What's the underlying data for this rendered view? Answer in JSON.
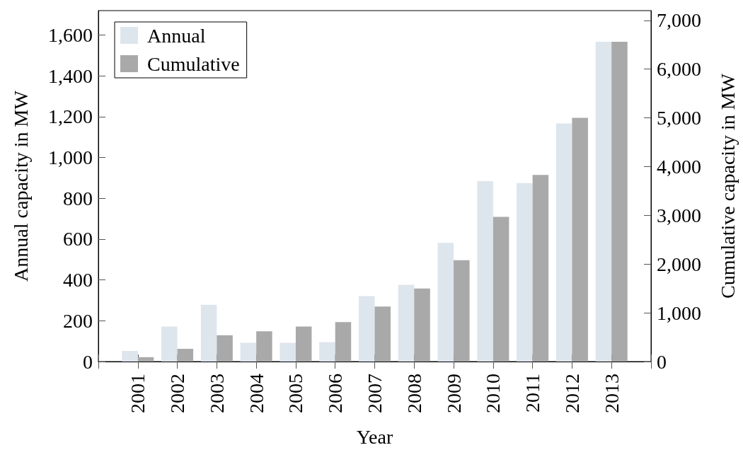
{
  "chart_data": {
    "type": "bar",
    "xlabel": "Year",
    "ylabel": "Annual capacity in MW",
    "y2label": "Cumulative capacity in MW",
    "categories": [
      "2001",
      "2002",
      "2003",
      "2004",
      "2005",
      "2006",
      "2007",
      "2008",
      "2009",
      "2010",
      "2011",
      "2012",
      "2013"
    ],
    "series": [
      {
        "name": "Annual",
        "color": "#dde5ed",
        "values": [
          52,
          172,
          278,
          92,
          92,
          95,
          321,
          376,
          582,
          884,
          875,
          1167,
          1567
        ]
      },
      {
        "name": "Cumulative",
        "color": "#a9a9a9",
        "axis": "y2",
        "values": [
          90,
          260,
          540,
          620,
          720,
          810,
          1130,
          1500,
          2080,
          2970,
          3830,
          5000,
          6560
        ]
      }
    ],
    "ylim": [
      0,
      1720
    ],
    "yticks": [
      0,
      200,
      400,
      600,
      800,
      {
        "value": 1000,
        "label": "1,000"
      },
      {
        "value": 1200,
        "label": "1,200"
      },
      {
        "value": 1400,
        "label": "1,400"
      },
      {
        "value": 1600,
        "label": "1,600"
      }
    ],
    "y2lim": [
      0,
      7200
    ],
    "y2ticks": [
      0,
      {
        "value": 1000,
        "label": "1,000"
      },
      {
        "value": 2000,
        "label": "2,000"
      },
      {
        "value": 3000,
        "label": "3,000"
      },
      {
        "value": 4000,
        "label": "4,000"
      },
      {
        "value": 5000,
        "label": "5,000"
      },
      {
        "value": 6000,
        "label": "6,000"
      },
      {
        "value": 7000,
        "label": "7,000"
      }
    ],
    "grid": false,
    "legend": "top left"
  }
}
